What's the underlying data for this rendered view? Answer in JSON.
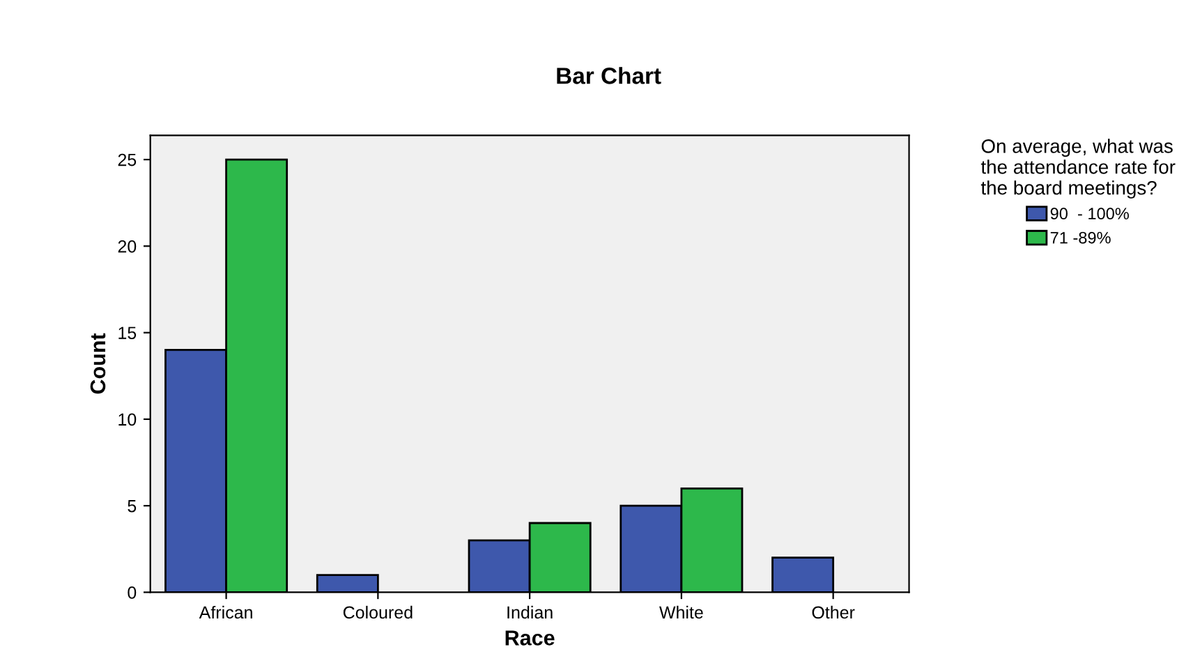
{
  "chart_data": {
    "type": "bar",
    "title": "Bar Chart",
    "xlabel": "Race",
    "ylabel": "Count",
    "legend_title": "On average, what was\nthe attendance rate for\nthe board meetings?",
    "categories": [
      "African",
      "Coloured",
      "Indian",
      "White",
      "Other"
    ],
    "series": [
      {
        "name": "90  - 100%",
        "color": "#3e58ac",
        "values": [
          14,
          1,
          3,
          5,
          2
        ]
      },
      {
        "name": "71 -89%",
        "color": "#2db84b",
        "values": [
          25,
          null,
          4,
          6,
          null
        ]
      }
    ],
    "ylim": [
      0,
      26.4
    ],
    "yticks": [
      0,
      5,
      10,
      15,
      20,
      25
    ],
    "grid": false,
    "legend": "right"
  }
}
